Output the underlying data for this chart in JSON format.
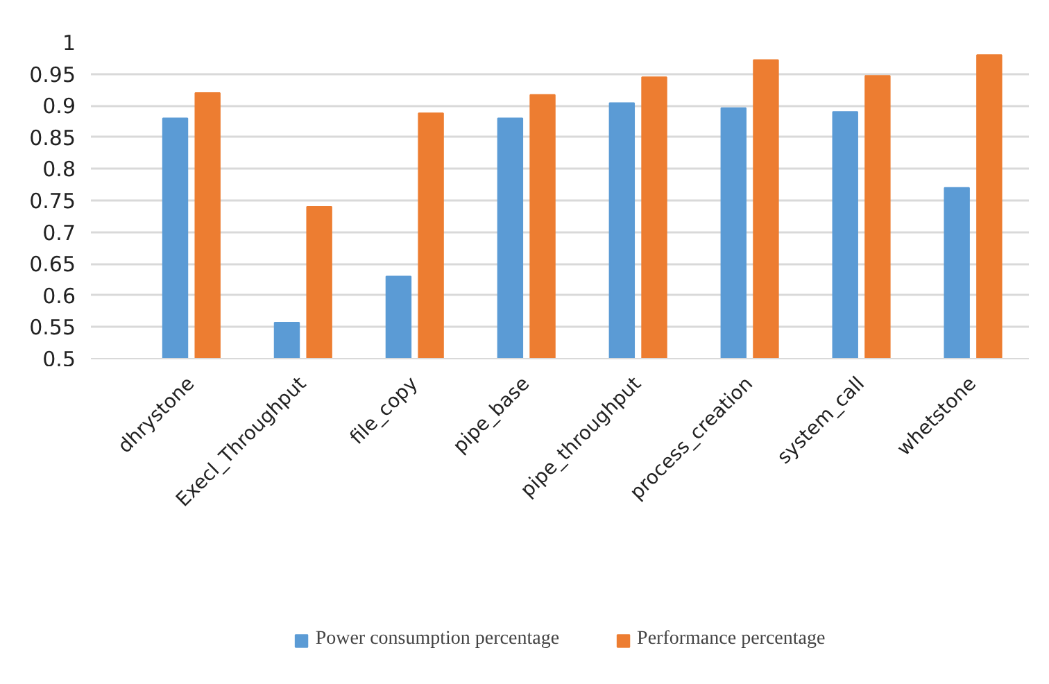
{
  "chart_data": {
    "type": "bar",
    "categories": [
      "dhrystone",
      "Execl_Throughput",
      "file_copy",
      "pipe_base",
      "pipe_throughput",
      "process_creation",
      "system_call",
      "whetstone"
    ],
    "series": [
      {
        "name": "Power consumption percentage",
        "color": "#5b9bd5",
        "values": [
          0.88,
          0.557,
          0.63,
          0.88,
          0.904,
          0.896,
          0.89,
          0.77
        ]
      },
      {
        "name": "Performance percentage",
        "color": "#ed7d31",
        "values": [
          0.92,
          0.74,
          0.888,
          0.917,
          0.945,
          0.972,
          0.947,
          0.98
        ]
      }
    ],
    "ylim": [
      0.5,
      1
    ],
    "yticks": [
      0.5,
      0.55,
      0.6,
      0.65,
      0.7,
      0.75,
      0.8,
      0.85,
      0.9,
      0.95,
      1
    ],
    "grid": "y",
    "legend": "bottom"
  }
}
